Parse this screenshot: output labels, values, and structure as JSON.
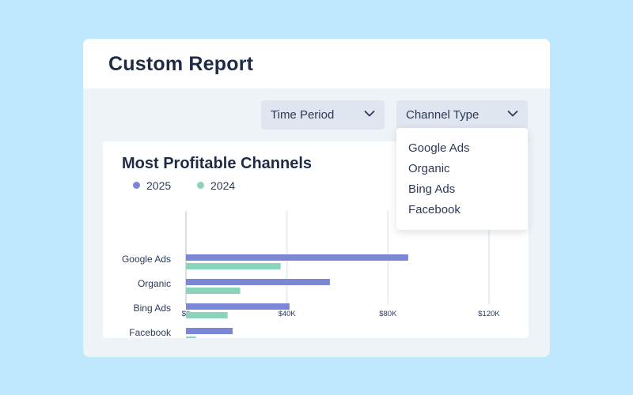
{
  "report": {
    "title": "Custom Report"
  },
  "filters": {
    "time_period": {
      "label": "Time Period",
      "icon": "chevron-down-icon"
    },
    "channel_type": {
      "label": "Channel Type",
      "icon": "chevron-down-icon",
      "expanded": true
    }
  },
  "dropdown_menu": {
    "items": [
      "Google Ads",
      "Organic",
      "Bing Ads",
      "Facebook"
    ]
  },
  "colors": {
    "series_2025": "#7b86d6",
    "series_2024": "#8ad5b9",
    "background": "#bfe7fd",
    "title_text": "#1f2a44"
  },
  "chart_data": {
    "type": "bar",
    "orientation": "horizontal",
    "title": "Most Profitable Channels",
    "categories": [
      "Google Ads",
      "Organic",
      "Bing Ads",
      "Facebook"
    ],
    "series": [
      {
        "name": "2025",
        "values": [
          88000,
          57000,
          41000,
          18500
        ]
      },
      {
        "name": "2024",
        "values": [
          37500,
          21500,
          16500,
          4000
        ]
      }
    ],
    "x_ticks": [
      "$0",
      "$40K",
      "$80K",
      "$120K"
    ],
    "x_tick_values": [
      0,
      40000,
      80000,
      120000
    ],
    "xlim": [
      0,
      120000
    ],
    "grid": true,
    "legend": "top-left"
  }
}
